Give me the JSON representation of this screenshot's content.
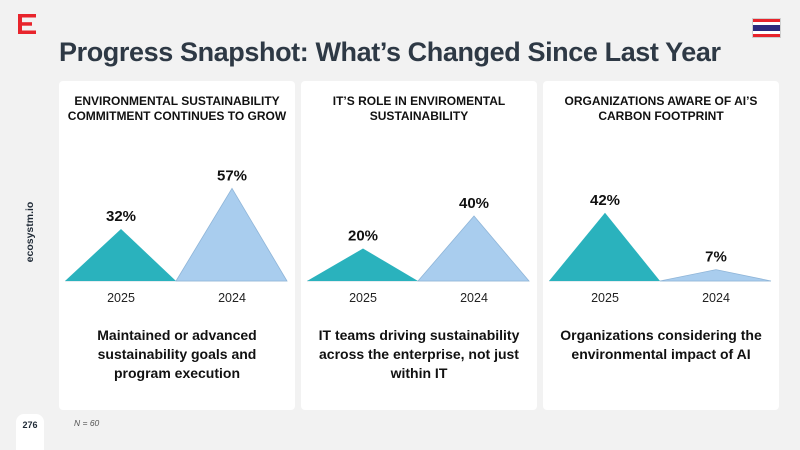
{
  "header": {
    "title": "Progress Snapshot: What’s Changed Since Last Year",
    "logo_icon": "ecosystm-logo-icon",
    "flag_icon": "thailand-flag-icon",
    "accent_color": "#e8242c"
  },
  "sidebar": {
    "brand": "ecosystm.io",
    "page_number": "276"
  },
  "footer": {
    "note": "N = 60"
  },
  "colors": {
    "bar_2025": "#2ab2bd",
    "bar_2024": "#a9cdee",
    "bar_2024_outline": "#8fb5d8",
    "baseline": "#cfd8e0"
  },
  "chart_data": [
    {
      "type": "area",
      "title": "ENVIRONMENTAL SUSTAINABILITY COMMITMENT CONTINUES TO GROW",
      "categories": [
        "2025",
        "2024"
      ],
      "values": [
        32,
        57
      ],
      "value_labels": [
        "32%",
        "57%"
      ],
      "unit": "%",
      "ylim": [
        0,
        80
      ],
      "description": "Maintained or advanced sustainability goals and program execution"
    },
    {
      "type": "area",
      "title": "IT’S ROLE IN ENVIROMENTAL SUSTAINABILITY",
      "categories": [
        "2025",
        "2024"
      ],
      "values": [
        20,
        40
      ],
      "value_labels": [
        "20%",
        "40%"
      ],
      "unit": "%",
      "ylim": [
        0,
        80
      ],
      "description": "IT teams driving sustainability across the enterprise, not just within IT"
    },
    {
      "type": "area",
      "title": "ORGANIZATIONS AWARE OF AI’S CARBON FOOTPRINT",
      "categories": [
        "2025",
        "2024"
      ],
      "values": [
        42,
        7
      ],
      "value_labels": [
        "42%",
        "7%"
      ],
      "unit": "%",
      "ylim": [
        0,
        80
      ],
      "description": "Organizations considering the environmental impact of AI"
    }
  ]
}
